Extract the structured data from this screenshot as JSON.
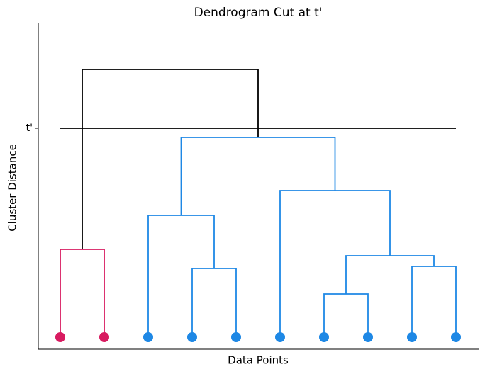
{
  "chart_data": {
    "type": "dendrogram",
    "title": "Dendrogram Cut at t'",
    "xlabel": "Data Points",
    "ylabel": "Cluster Distance",
    "leaf_colors": [
      "#d81b60",
      "#d81b60",
      "#1e88e5",
      "#1e88e5",
      "#1e88e5",
      "#1e88e5",
      "#1e88e5",
      "#1e88e5",
      "#1e88e5",
      "#1e88e5"
    ],
    "merges": [
      {
        "left": 0,
        "right": 1,
        "height": 2.48,
        "color": "#d81b60"
      },
      {
        "left": 3,
        "right": 4,
        "height": 1.94,
        "color": "#1e88e5"
      },
      {
        "left": 2,
        "right": 11,
        "height": 3.44,
        "color": "#1e88e5"
      },
      {
        "left": 6,
        "right": 7,
        "height": 1.22,
        "color": "#1e88e5"
      },
      {
        "left": 8,
        "right": 9,
        "height": 2.0,
        "color": "#1e88e5"
      },
      {
        "left": 13,
        "right": 14,
        "height": 2.3,
        "color": "#1e88e5"
      },
      {
        "left": 5,
        "right": 15,
        "height": 4.14,
        "color": "#1e88e5"
      },
      {
        "left": 12,
        "right": 16,
        "height": 5.64,
        "color": "#1e88e5"
      },
      {
        "left": 10,
        "right": 17,
        "height": 7.56,
        "color": "#000000"
      }
    ],
    "threshold": 5.9,
    "ylim": [
      -0.34,
      8.86
    ],
    "yticks": [
      {
        "value": 5.9,
        "label": "t'"
      }
    ]
  }
}
